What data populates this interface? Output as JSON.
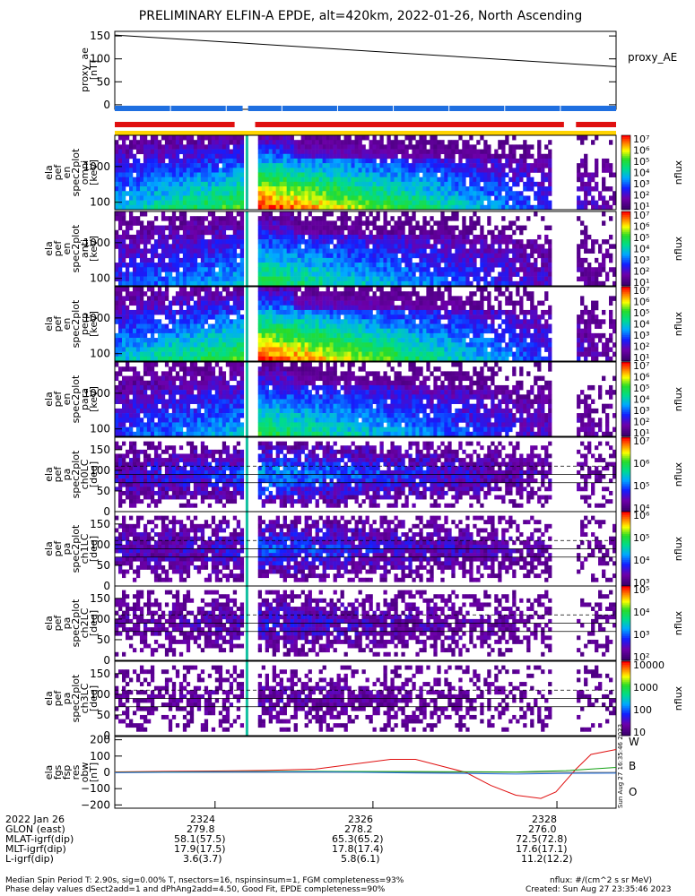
{
  "title": "PRELIMINARY ELFIN-A EPDE, alt=420km, 2022-01-26, North Ascending",
  "colors": {
    "black": "#000000",
    "blue": "#1f6fe0",
    "red": "#e01010",
    "yellow": "#ffd400",
    "green": "#12a012"
  },
  "chart_data": [
    {
      "type": "line",
      "panel": "proxy_ae",
      "ylabel": [
        "proxy_ae",
        "[nT]"
      ],
      "legend": "proxy_AE",
      "yticks": [
        "150",
        "100",
        "50",
        "0"
      ],
      "ylim": [
        -10,
        160
      ],
      "series": [
        {
          "name": "proxy_AE",
          "x": [
            0,
            1
          ],
          "values": [
            152,
            83
          ]
        }
      ]
    },
    {
      "type": "bar",
      "panel": "status-bars",
      "rows": [
        {
          "color": "blue",
          "segments": [
            [
              0.0,
              0.255
            ],
            [
              0.266,
              1.0
            ]
          ]
        },
        {
          "color": "red",
          "segments": [
            [
              0.0,
              0.239
            ],
            [
              0.28,
              0.896
            ],
            [
              0.92,
              1.0
            ]
          ]
        },
        {
          "color": "yellow",
          "segments": [
            [
              0.0,
              1.0
            ]
          ]
        }
      ]
    },
    {
      "type": "heatmap",
      "panels": [
        {
          "ylabel": [
            "ela",
            "pef",
            "en",
            "spec2plot",
            "omni",
            "[keV]"
          ],
          "yticks": [
            "1000",
            "100"
          ],
          "scale": "log",
          "cbticks": [
            "10⁷",
            "10⁶",
            "10⁵",
            "10⁴",
            "10³",
            "10²",
            "10¹"
          ],
          "cblabel": "nflux"
        },
        {
          "ylabel": [
            "ela",
            "pef",
            "en",
            "spec2plot",
            "anti",
            "[keV]"
          ],
          "yticks": [
            "1000",
            "100"
          ],
          "scale": "log",
          "cbticks": [
            "10⁷",
            "10⁶",
            "10⁵",
            "10⁴",
            "10³",
            "10²",
            "10¹"
          ],
          "cblabel": "nflux"
        },
        {
          "ylabel": [
            "ela",
            "pef",
            "en",
            "spec2plot",
            "perp",
            "[keV]"
          ],
          "yticks": [
            "1000",
            "100"
          ],
          "scale": "log",
          "cbticks": [
            "10⁷",
            "10⁶",
            "10⁵",
            "10⁴",
            "10³",
            "10²",
            "10¹"
          ],
          "cblabel": "nflux"
        },
        {
          "ylabel": [
            "ela",
            "pef",
            "en",
            "spec2plot",
            "para",
            "[keV]"
          ],
          "yticks": [
            "1000",
            "100"
          ],
          "scale": "log",
          "cbticks": [
            "10⁷",
            "10⁶",
            "10⁵",
            "10⁴",
            "10³",
            "10²",
            "10¹"
          ],
          "cblabel": "nflux"
        },
        {
          "ylabel": [
            "ela",
            "pef",
            "pa",
            "spec2plot",
            "ch0LC",
            "[deg]"
          ],
          "yticks": [
            "150",
            "100",
            "50",
            "0"
          ],
          "scale": "pa",
          "cbticks": [
            "10⁷",
            "10⁶",
            "10⁵",
            "10⁴"
          ],
          "cblabel": "nflux"
        },
        {
          "ylabel": [
            "ela",
            "pef",
            "pa",
            "spec2plot",
            "ch1LC",
            "[deg]"
          ],
          "yticks": [
            "150",
            "100",
            "50",
            "0"
          ],
          "scale": "pa",
          "cbticks": [
            "10⁶",
            "10⁵",
            "10⁴",
            "10³"
          ],
          "cblabel": "nflux"
        },
        {
          "ylabel": [
            "ela",
            "pef",
            "pa",
            "spec2plot",
            "ch2LC",
            "[deg]"
          ],
          "yticks": [
            "150",
            "100",
            "50",
            "0"
          ],
          "scale": "pa",
          "cbticks": [
            "10⁵",
            "10⁴",
            "10³",
            "10²"
          ],
          "cblabel": "nflux"
        },
        {
          "ylabel": [
            "ela",
            "pef",
            "pa",
            "spec2plot",
            "ch3LC",
            "[deg]"
          ],
          "yticks": [
            "150",
            "100",
            "50",
            "0"
          ],
          "scale": "pa",
          "cbticks": [
            "10000",
            "1000",
            "100",
            "10"
          ],
          "cblabel": "nflux"
        }
      ]
    },
    {
      "type": "line",
      "panel": "fgs",
      "ylabel": [
        "ela",
        "fgs",
        "fsp",
        "res",
        "obw",
        "[nT]"
      ],
      "yticks": [
        "200",
        "100",
        "0",
        "−100",
        "−200"
      ],
      "ylim": [
        -220,
        220
      ],
      "series": [
        {
          "name": "W",
          "color": "red",
          "x": [
            0,
            0.1,
            0.2,
            0.3,
            0.4,
            0.45,
            0.5,
            0.55,
            0.6,
            0.65,
            0.7,
            0.75,
            0.8,
            0.85,
            0.88,
            0.92,
            0.95,
            1.0
          ],
          "values": [
            3,
            6,
            8,
            12,
            20,
            40,
            60,
            80,
            80,
            40,
            0,
            -80,
            -140,
            -160,
            -120,
            20,
            110,
            140
          ]
        },
        {
          "name": "B",
          "color": "green",
          "x": [
            0,
            0.2,
            0.4,
            0.6,
            0.8,
            0.9,
            1.0
          ],
          "values": [
            0,
            4,
            6,
            5,
            2,
            10,
            30
          ]
        },
        {
          "name": "O",
          "color": "blue",
          "x": [
            0,
            0.2,
            0.4,
            0.6,
            0.8,
            0.9,
            1.0
          ],
          "values": [
            -2,
            2,
            3,
            -4,
            -10,
            -6,
            -5
          ]
        }
      ],
      "legend": [
        "W",
        "B",
        "O"
      ]
    }
  ],
  "xaxis": {
    "date": "2022 Jan 26",
    "ticks": [
      {
        "time": "2324",
        "glon": "279.8",
        "mlat": "58.1(57.5)",
        "mlt": "17.9(17.5)",
        "l": "3.6(3.7)"
      },
      {
        "time": "2326",
        "glon": "278.2",
        "mlat": "65.3(65.2)",
        "mlt": "17.8(17.4)",
        "l": "5.8(6.1)"
      },
      {
        "time": "2328",
        "glon": "276.0",
        "mlat": "72.5(72.8)",
        "mlt": "17.6(17.1)",
        "l": "11.2(12.2)"
      }
    ],
    "rowlabels": [
      "GLON (east)",
      "MLAT-igrf(dip)",
      "MLT-igrf(dip)",
      "L-igrf(dip)"
    ]
  },
  "footer": {
    "line1": "Median Spin Period T: 2.90s, sig=0.00% T, nsectors=16, nspinsinsum=1, FGM completeness=93%",
    "line2": "Phase delay values dSect2add=1 and dPhAng2add=4.50, Good Fit, EPDE completeness=90%",
    "units": "nflux: #/(cm^2 s sr MeV)",
    "created": "Created: Sun Aug 27 23:35:46 2023",
    "stamp": "Sun Aug 27 16:35:46 2023"
  }
}
